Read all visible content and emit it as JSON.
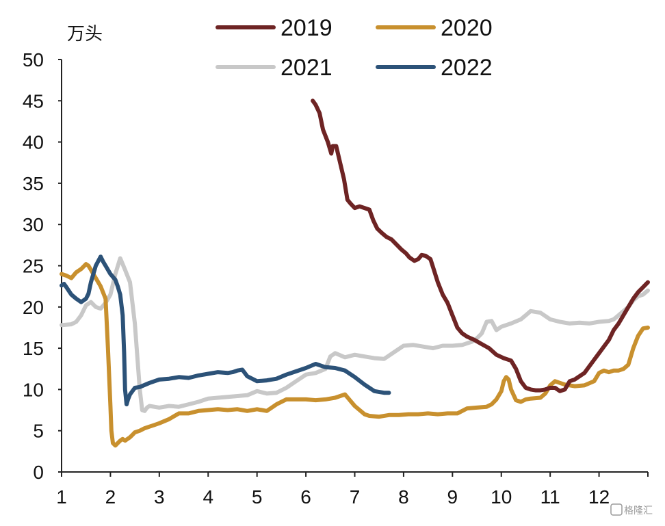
{
  "watermark": "格隆汇",
  "chart_data": {
    "type": "line",
    "title": "",
    "ylabel": "万头",
    "xlabel": "",
    "ylim": [
      0,
      50
    ],
    "yticks": [
      0,
      5,
      10,
      15,
      20,
      25,
      30,
      35,
      40,
      45,
      50
    ],
    "xlim": [
      1,
      13
    ],
    "xticks": [
      1,
      2,
      3,
      4,
      5,
      6,
      7,
      8,
      9,
      10,
      11,
      12
    ],
    "xtick_labels": [
      "1",
      "2",
      "3",
      "4",
      "5",
      "6",
      "7",
      "8",
      "9",
      "10",
      "11",
      "12"
    ],
    "grid": false,
    "legend_position": "top",
    "series": [
      {
        "name": "2019",
        "color": "#6e2424",
        "x": [
          6.14,
          6.2,
          6.28,
          6.35,
          6.45,
          6.52,
          6.55,
          6.62,
          6.7,
          6.78,
          6.85,
          6.92,
          7.0,
          7.1,
          7.2,
          7.3,
          7.38,
          7.46,
          7.55,
          7.65,
          7.75,
          7.85,
          7.95,
          8.05,
          8.12,
          8.22,
          8.3,
          8.37,
          8.45,
          8.55,
          8.62,
          8.7,
          8.8,
          8.9,
          9.0,
          9.1,
          9.2,
          9.3,
          9.45,
          9.6,
          9.75,
          9.9,
          10.05,
          10.2,
          10.3,
          10.4,
          10.5,
          10.6,
          10.7,
          10.8,
          10.9,
          11.0,
          11.1,
          11.2,
          11.3,
          11.4,
          11.5,
          11.6,
          11.7,
          11.8,
          11.9,
          12.0,
          12.1,
          12.2,
          12.3,
          12.4,
          12.5,
          12.6,
          12.7,
          12.8,
          12.9,
          13.0
        ],
        "values": [
          45.0,
          44.5,
          43.5,
          41.5,
          40.0,
          38.6,
          39.5,
          39.5,
          37.5,
          35.5,
          33.0,
          32.5,
          32.0,
          32.2,
          32.0,
          31.8,
          30.5,
          29.5,
          29.0,
          28.5,
          28.2,
          27.6,
          27.0,
          26.5,
          26.0,
          25.6,
          25.8,
          26.3,
          26.2,
          25.8,
          24.5,
          23.0,
          21.5,
          20.5,
          19.0,
          17.5,
          16.8,
          16.4,
          16.0,
          15.5,
          15.0,
          14.2,
          13.8,
          13.5,
          12.5,
          11.0,
          10.2,
          10.0,
          9.9,
          9.9,
          10.0,
          10.2,
          10.2,
          9.8,
          10.0,
          11.0,
          11.2,
          11.6,
          12.0,
          12.8,
          13.6,
          14.4,
          15.2,
          16.0,
          17.2,
          18.0,
          19.0,
          20.0,
          21.0,
          21.8,
          22.4,
          23.0
        ]
      },
      {
        "name": "2020",
        "color": "#c8902e",
        "x": [
          1.0,
          1.1,
          1.2,
          1.3,
          1.4,
          1.5,
          1.55,
          1.6,
          1.65,
          1.7,
          1.8,
          1.9,
          1.95,
          2.0,
          2.02,
          2.05,
          2.1,
          2.15,
          2.2,
          2.25,
          2.3,
          2.35,
          2.4,
          2.45,
          2.5,
          2.6,
          2.7,
          2.8,
          2.9,
          3.0,
          3.2,
          3.4,
          3.6,
          3.8,
          4.0,
          4.2,
          4.4,
          4.6,
          4.8,
          5.0,
          5.2,
          5.4,
          5.6,
          5.8,
          6.0,
          6.2,
          6.4,
          6.6,
          6.8,
          7.0,
          7.1,
          7.2,
          7.3,
          7.5,
          7.7,
          7.9,
          8.1,
          8.3,
          8.5,
          8.7,
          8.9,
          9.1,
          9.3,
          9.5,
          9.7,
          9.8,
          9.9,
          10.0,
          10.05,
          10.1,
          10.15,
          10.2,
          10.3,
          10.4,
          10.5,
          10.6,
          10.8,
          10.9,
          11.0,
          11.1,
          11.2,
          11.3,
          11.5,
          11.7,
          11.9,
          12.0,
          12.1,
          12.2,
          12.3,
          12.4,
          12.5,
          12.6,
          12.7,
          12.8,
          12.9,
          13.0
        ],
        "values": [
          24.0,
          23.8,
          23.5,
          24.2,
          24.6,
          25.2,
          25.0,
          24.5,
          24.0,
          23.5,
          22.5,
          21.0,
          15.0,
          8.0,
          5.0,
          3.5,
          3.2,
          3.5,
          3.8,
          4.0,
          3.8,
          4.0,
          4.2,
          4.5,
          4.8,
          5.0,
          5.3,
          5.5,
          5.7,
          5.9,
          6.4,
          7.1,
          7.1,
          7.4,
          7.5,
          7.6,
          7.5,
          7.6,
          7.4,
          7.6,
          7.4,
          8.2,
          8.8,
          8.8,
          8.8,
          8.7,
          8.8,
          9.0,
          9.4,
          8.0,
          7.5,
          7.0,
          6.8,
          6.7,
          6.9,
          6.9,
          7.0,
          7.0,
          7.1,
          7.0,
          7.1,
          7.1,
          7.7,
          7.8,
          7.9,
          8.2,
          8.8,
          9.8,
          11.0,
          11.5,
          11.2,
          10.0,
          8.7,
          8.5,
          8.8,
          8.9,
          9.0,
          9.5,
          10.5,
          11.0,
          10.8,
          10.6,
          10.4,
          10.5,
          11.0,
          12.0,
          12.3,
          12.1,
          12.3,
          12.3,
          12.5,
          13.0,
          15.0,
          16.5,
          17.4,
          17.5
        ]
      },
      {
        "name": "2021",
        "color": "#c8c8c8",
        "x": [
          1.0,
          1.2,
          1.3,
          1.4,
          1.5,
          1.6,
          1.7,
          1.8,
          1.9,
          2.0,
          2.1,
          2.2,
          2.25,
          2.3,
          2.4,
          2.5,
          2.55,
          2.6,
          2.65,
          2.7,
          2.75,
          2.8,
          3.0,
          3.2,
          3.4,
          3.6,
          3.8,
          4.0,
          4.2,
          4.4,
          4.6,
          4.8,
          5.0,
          5.2,
          5.4,
          5.6,
          5.8,
          6.0,
          6.2,
          6.4,
          6.5,
          6.6,
          6.8,
          7.0,
          7.2,
          7.4,
          7.6,
          7.8,
          8.0,
          8.2,
          8.4,
          8.6,
          8.8,
          9.0,
          9.2,
          9.4,
          9.5,
          9.6,
          9.7,
          9.8,
          9.9,
          10.0,
          10.2,
          10.4,
          10.5,
          10.6,
          10.8,
          11.0,
          11.2,
          11.4,
          11.6,
          11.8,
          12.0,
          12.2,
          12.3,
          12.4,
          12.5,
          12.6,
          12.7,
          12.8,
          12.9,
          13.0
        ],
        "values": [
          17.8,
          17.9,
          18.2,
          19.0,
          20.2,
          20.6,
          20.0,
          19.8,
          20.5,
          21.5,
          24.0,
          25.9,
          25.2,
          24.5,
          23.0,
          18.0,
          14.0,
          10.0,
          7.5,
          7.4,
          7.8,
          8.0,
          7.8,
          8.0,
          7.9,
          8.2,
          8.5,
          8.9,
          9.0,
          9.1,
          9.2,
          9.3,
          9.8,
          9.5,
          9.6,
          10.2,
          11.0,
          11.8,
          12.0,
          12.5,
          14.0,
          14.4,
          13.9,
          14.2,
          14.0,
          13.8,
          13.7,
          14.5,
          15.3,
          15.4,
          15.2,
          15.0,
          15.3,
          15.3,
          15.4,
          15.8,
          16.2,
          16.8,
          18.2,
          18.3,
          17.2,
          17.6,
          18.0,
          18.5,
          19.0,
          19.5,
          19.3,
          18.5,
          18.2,
          18.0,
          18.1,
          18.0,
          18.2,
          18.3,
          18.5,
          19.0,
          19.5,
          20.0,
          20.8,
          21.3,
          21.5,
          22.0
        ]
      },
      {
        "name": "2022",
        "color": "#2c5278",
        "x": [
          1.0,
          1.05,
          1.1,
          1.2,
          1.3,
          1.4,
          1.5,
          1.55,
          1.6,
          1.7,
          1.8,
          1.85,
          1.9,
          2.0,
          2.1,
          2.15,
          2.2,
          2.25,
          2.28,
          2.3,
          2.33,
          2.36,
          2.4,
          2.5,
          2.6,
          2.8,
          3.0,
          3.2,
          3.4,
          3.6,
          3.8,
          4.0,
          4.2,
          4.4,
          4.5,
          4.6,
          4.7,
          4.8,
          5.0,
          5.2,
          5.4,
          5.6,
          5.8,
          6.0,
          6.2,
          6.4,
          6.6,
          6.8,
          7.0,
          7.2,
          7.4,
          7.6,
          7.7
        ],
        "values": [
          22.6,
          22.8,
          22.4,
          21.5,
          21.0,
          20.6,
          21.0,
          21.6,
          23.0,
          25.0,
          26.1,
          25.5,
          25.0,
          24.0,
          23.3,
          22.5,
          21.5,
          19.0,
          14.5,
          10.0,
          8.2,
          8.8,
          9.4,
          10.2,
          10.3,
          10.8,
          11.2,
          11.3,
          11.5,
          11.4,
          11.7,
          11.9,
          12.1,
          12.0,
          12.1,
          12.3,
          12.4,
          11.6,
          11.0,
          11.1,
          11.3,
          11.8,
          12.2,
          12.6,
          13.1,
          12.7,
          12.6,
          12.3,
          11.5,
          10.6,
          9.8,
          9.6,
          9.6
        ]
      }
    ]
  }
}
